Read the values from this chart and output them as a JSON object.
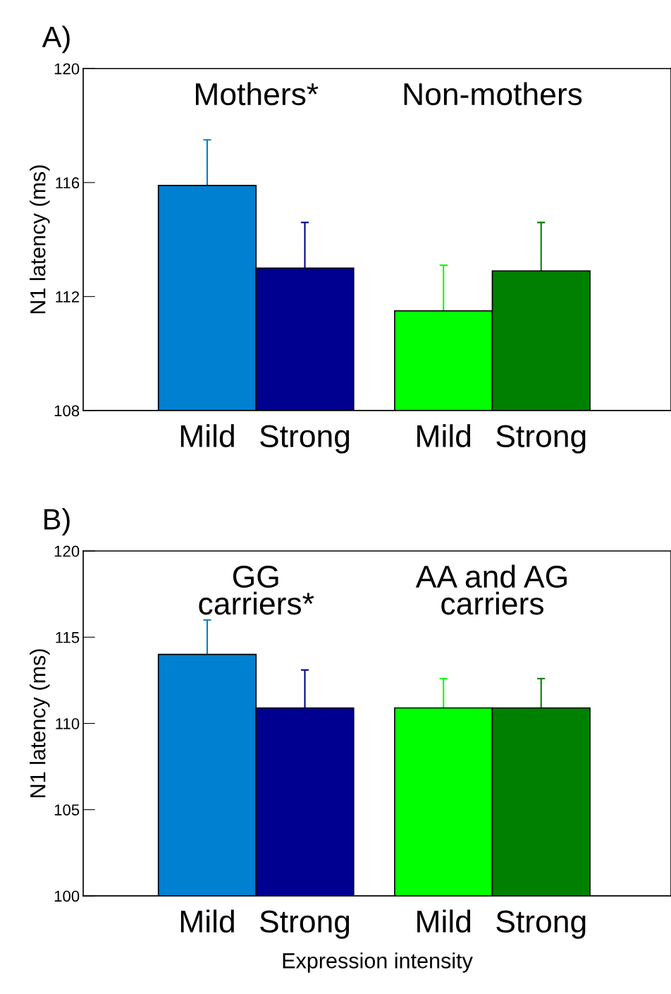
{
  "chart_data": [
    {
      "type": "bar",
      "title": "A)",
      "ylabel": "N1 latency (ms)",
      "categories": [
        "Mild",
        "Strong",
        "Mild",
        "Strong"
      ],
      "values": [
        115.9,
        113.0,
        111.5,
        112.9
      ],
      "colors": [
        "#0080d0",
        "#000090",
        "#00ff00",
        "#008000"
      ],
      "errors": [
        [
          115.9,
          117.5
        ],
        [
          113.0,
          114.6
        ],
        [
          111.5,
          113.1
        ],
        [
          112.9,
          114.6
        ]
      ],
      "ylim": [
        108,
        120
      ],
      "yticks": [
        108,
        112,
        116,
        120
      ],
      "annotations": [
        "Mothers*",
        "Non-mothers"
      ]
    },
    {
      "type": "bar",
      "title": "B)",
      "ylabel": "N1 latency (ms)",
      "xlabel": "Expression intensity",
      "categories": [
        "Mild",
        "Strong",
        "Mild",
        "Strong"
      ],
      "values": [
        114.0,
        110.9,
        110.9,
        110.9
      ],
      "colors": [
        "#0080d0",
        "#000090",
        "#00ff00",
        "#008000"
      ],
      "errors": [
        [
          114.0,
          116.0
        ],
        [
          110.9,
          113.1
        ],
        [
          110.9,
          112.6
        ],
        [
          110.9,
          112.6
        ]
      ],
      "ylim": [
        100,
        120
      ],
      "yticks": [
        100,
        105,
        110,
        115,
        120
      ],
      "annotations": [
        "GG\ncarriers*",
        "AA and AG\ncarriers"
      ]
    }
  ]
}
